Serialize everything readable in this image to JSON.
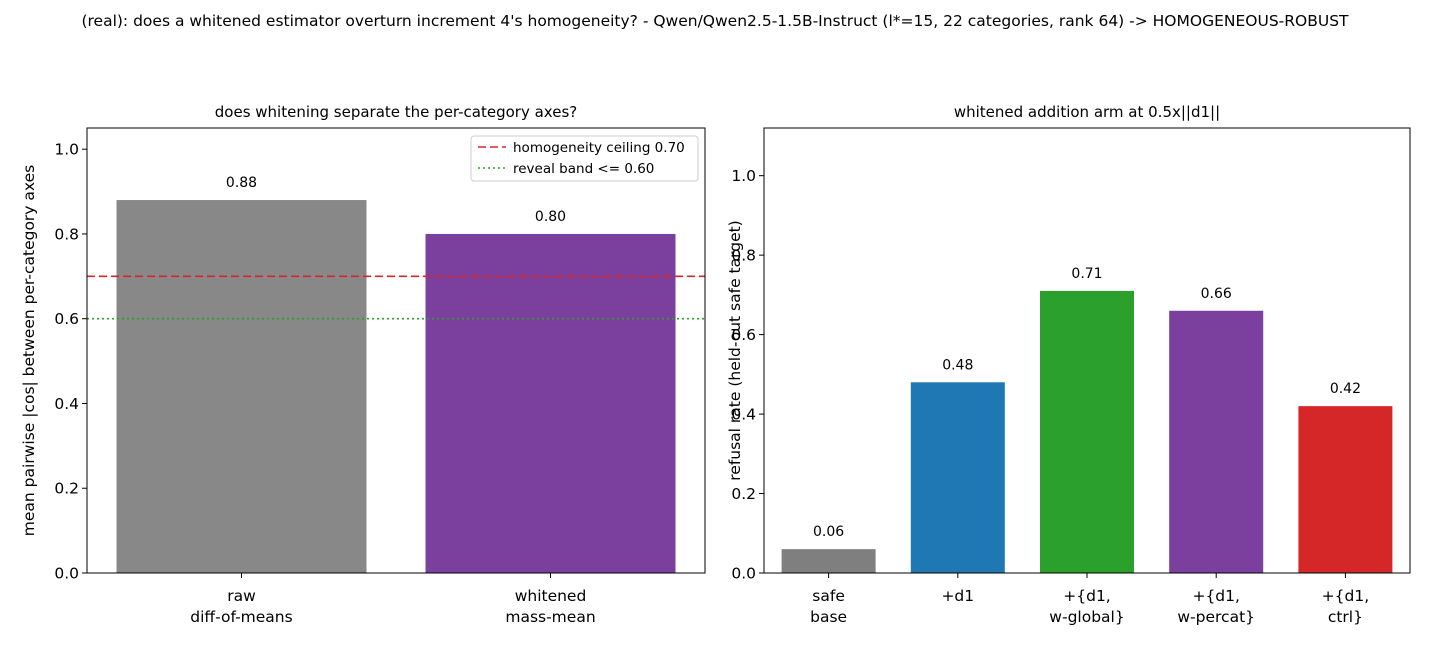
{
  "suptitle": "(real): does a whitened estimator overturn increment 4's homogeneity? - Qwen/Qwen2.5-1.5B-Instruct (l*=15, 22 categories, rank 64) -> HOMOGENEOUS-ROBUST",
  "chart_data": [
    {
      "type": "bar",
      "title": "does whitening separate the per-category axes?",
      "xlabel": "",
      "ylabel": "mean pairwise |cos| between per-category axes",
      "ylim": [
        0,
        1.05
      ],
      "yticks": [
        "0.0",
        "0.2",
        "0.4",
        "0.6",
        "0.8",
        "1.0"
      ],
      "categories": [
        [
          "raw",
          "diff-of-means"
        ],
        [
          "whitened",
          "mass-mean"
        ]
      ],
      "values": [
        0.88,
        0.8
      ],
      "value_labels": [
        "0.88",
        "0.80"
      ],
      "colors": [
        "#888888",
        "#7b3f9e"
      ],
      "reference_lines": [
        {
          "label": "homogeneity ceiling 0.70",
          "y": 0.7,
          "color": "#d62728",
          "style": "dashed"
        },
        {
          "label": "reveal band <= 0.60",
          "y": 0.6,
          "color": "#2ca02c",
          "style": "dotted"
        }
      ],
      "legend_position": "top-right",
      "grid": false
    },
    {
      "type": "bar",
      "title": "whitened addition arm at 0.5x||d1||",
      "xlabel": "",
      "ylabel": "refusal rate (held-out safe target)",
      "ylim": [
        0,
        1.12
      ],
      "yticks": [
        "0.0",
        "0.2",
        "0.4",
        "0.6",
        "0.8",
        "1.0"
      ],
      "categories": [
        [
          "safe",
          "base"
        ],
        [
          "+d1"
        ],
        [
          "+{d1,",
          "w-global}"
        ],
        [
          "+{d1,",
          "w-percat}"
        ],
        [
          "+{d1,",
          "ctrl}"
        ]
      ],
      "values": [
        0.06,
        0.48,
        0.71,
        0.66,
        0.42
      ],
      "value_labels": [
        "0.06",
        "0.48",
        "0.71",
        "0.66",
        "0.42"
      ],
      "colors": [
        "#7f7f7f",
        "#1f77b4",
        "#2ca02c",
        "#7b3f9e",
        "#d62728"
      ],
      "grid": false
    }
  ]
}
